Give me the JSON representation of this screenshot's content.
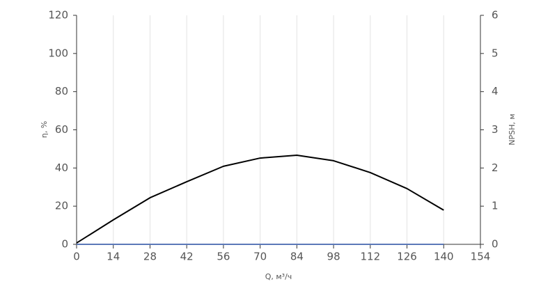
{
  "chart_data": {
    "type": "line",
    "x_label": "Q, м³/ч",
    "y_label": "η, %",
    "y2_label": "NPSH, м",
    "x": [
      0,
      14,
      28,
      42,
      56,
      70,
      84,
      98,
      112,
      126,
      140
    ],
    "series": [
      {
        "name": "η, %",
        "color": "#000000",
        "values": [
          0.7,
          12.8,
          24.4,
          32.8,
          40.9,
          45.2,
          46.7,
          43.8,
          37.6,
          29.2,
          17.9
        ]
      },
      {
        "name": "NPSH, м",
        "color": "#5b78b8",
        "axis": "y2",
        "values": [
          0,
          0,
          0,
          0,
          0,
          0,
          0,
          0,
          0,
          0,
          0
        ]
      }
    ],
    "xlim": [
      0,
      154
    ],
    "xticks": [
      0,
      14,
      28,
      42,
      56,
      70,
      84,
      98,
      112,
      126,
      140,
      154
    ],
    "ylim": [
      0,
      120
    ],
    "yticks": [
      0,
      20,
      40,
      60,
      80,
      100,
      120
    ],
    "y2lim": [
      0,
      6
    ],
    "y2ticks": [
      0,
      1,
      2,
      3,
      4,
      5,
      6
    ],
    "grid": "x"
  }
}
